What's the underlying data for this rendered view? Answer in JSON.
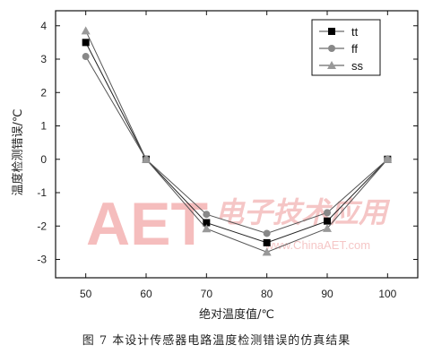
{
  "chart_data": {
    "type": "line",
    "x": [
      50,
      60,
      70,
      80,
      90,
      100
    ],
    "xticks": [
      "50",
      "60",
      "70",
      "80",
      "90",
      "100"
    ],
    "yticks": [
      "4",
      "3",
      "2",
      "1",
      "0",
      "-1",
      "-2",
      "-3"
    ],
    "xlim": [
      45,
      105
    ],
    "ylim": [
      -3.55,
      4.45
    ],
    "xlabel": "绝对温度值/℃",
    "ylabel": "温度检测错误/℃",
    "grid": false,
    "legend_position": "top-right",
    "series": [
      {
        "name": "tt",
        "marker": "square",
        "color": "#000000",
        "values": [
          3.5,
          0.0,
          -1.9,
          -2.5,
          -1.85,
          0.0
        ]
      },
      {
        "name": "ff",
        "marker": "circle",
        "color": "#888888",
        "values": [
          3.08,
          0.0,
          -1.65,
          -2.22,
          -1.6,
          0.0
        ]
      },
      {
        "name": "ss",
        "marker": "triangle",
        "color": "#999999",
        "values": [
          3.85,
          0.0,
          -2.08,
          -2.78,
          -2.07,
          0.0
        ]
      }
    ]
  },
  "caption": "图 7   本设计传感器电路温度检测错误的仿真结果",
  "watermark": {
    "brand": "AET",
    "chinese": "电子技术应用",
    "url": "www.ChinaAET.com",
    "color": "#e87a7a"
  }
}
